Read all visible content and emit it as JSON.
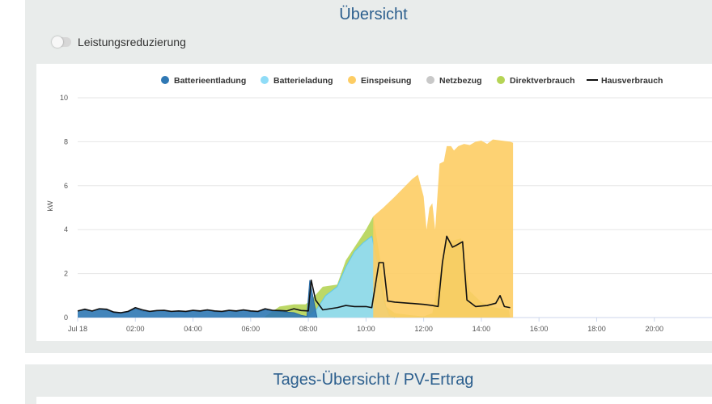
{
  "header": {
    "title": "Übersicht"
  },
  "toggle": {
    "label": "Leistungsreduzierung",
    "state": "off"
  },
  "chart_data": {
    "type": "area",
    "title": "",
    "ylabel": "kW",
    "ylim": [
      0,
      10
    ],
    "yticks": [
      "0",
      "2",
      "4",
      "6",
      "8",
      "10"
    ],
    "xticks": [
      {
        "hour": 0,
        "label": "Jul 18"
      },
      {
        "hour": 2,
        "label": "02:00"
      },
      {
        "hour": 4,
        "label": "04:00"
      },
      {
        "hour": 6,
        "label": "06:00"
      },
      {
        "hour": 8,
        "label": "08:00"
      },
      {
        "hour": 10,
        "label": "10:00"
      },
      {
        "hour": 12,
        "label": "12:00"
      },
      {
        "hour": 14,
        "label": "14:00"
      },
      {
        "hour": 16,
        "label": "16:00"
      },
      {
        "hour": 18,
        "label": "18:00"
      },
      {
        "hour": 20,
        "label": "20:00"
      }
    ],
    "x_range_hours": [
      0,
      22
    ],
    "legend_position": "top",
    "colors": {
      "Batterieentladung": "#2f78b4",
      "Batterieladung": "#8fdcf7",
      "Einspeisung": "#fdcd64",
      "Netzbezug": "#c8c8c8",
      "Direktverbrauch": "#b5d455",
      "Hausverbrauch": "#111111"
    },
    "series": [
      {
        "name": "Batterieentladung",
        "kind": "area",
        "points": [
          [
            0.0,
            0.3
          ],
          [
            0.25,
            0.35
          ],
          [
            0.5,
            0.28
          ],
          [
            0.75,
            0.38
          ],
          [
            1.0,
            0.35
          ],
          [
            1.25,
            0.22
          ],
          [
            1.5,
            0.2
          ],
          [
            1.75,
            0.25
          ],
          [
            2.0,
            0.4
          ],
          [
            2.25,
            0.3
          ],
          [
            2.5,
            0.26
          ],
          [
            2.75,
            0.3
          ],
          [
            3.0,
            0.3
          ],
          [
            3.25,
            0.26
          ],
          [
            3.5,
            0.28
          ],
          [
            3.75,
            0.25
          ],
          [
            4.0,
            0.3
          ],
          [
            4.25,
            0.27
          ],
          [
            4.5,
            0.32
          ],
          [
            4.75,
            0.27
          ],
          [
            5.0,
            0.25
          ],
          [
            5.25,
            0.3
          ],
          [
            5.5,
            0.27
          ],
          [
            5.75,
            0.32
          ],
          [
            6.0,
            0.27
          ],
          [
            6.25,
            0.25
          ],
          [
            6.5,
            0.35
          ],
          [
            6.75,
            0.3
          ],
          [
            7.0,
            0.28
          ],
          [
            7.25,
            0.25
          ],
          [
            7.5,
            0.22
          ],
          [
            7.75,
            0.1
          ],
          [
            7.95,
            0.05
          ],
          [
            8.05,
            1.7
          ],
          [
            8.3,
            0.0
          ]
        ]
      },
      {
        "name": "Direktverbrauch",
        "kind": "area",
        "points": [
          [
            6.5,
            0.05
          ],
          [
            7.0,
            0.5
          ],
          [
            7.5,
            0.6
          ],
          [
            7.9,
            0.6
          ],
          [
            8.1,
            0.8
          ],
          [
            8.5,
            1.4
          ],
          [
            9.0,
            1.5
          ],
          [
            9.3,
            2.6
          ],
          [
            9.6,
            3.2
          ],
          [
            10.0,
            4.0
          ],
          [
            10.25,
            4.6
          ],
          [
            10.5,
            2.6
          ],
          [
            10.7,
            0.5
          ],
          [
            11.0,
            0.2
          ],
          [
            11.6,
            0.1
          ],
          [
            12.0,
            0.05
          ],
          [
            12.3,
            0.2
          ],
          [
            12.5,
            1.6
          ],
          [
            12.8,
            3.6
          ],
          [
            13.0,
            3.5
          ],
          [
            13.3,
            3.6
          ],
          [
            13.6,
            1.2
          ],
          [
            14.0,
            0.7
          ],
          [
            14.3,
            0.5
          ],
          [
            14.7,
            0.4
          ],
          [
            14.95,
            0.35
          ],
          [
            15.0,
            0.0
          ]
        ]
      },
      {
        "name": "Batterieladung",
        "kind": "area",
        "points": [
          [
            8.0,
            0.05
          ],
          [
            8.3,
            0.4
          ],
          [
            8.6,
            1.0
          ],
          [
            9.0,
            1.4
          ],
          [
            9.3,
            2.3
          ],
          [
            9.6,
            3.0
          ],
          [
            9.9,
            3.4
          ],
          [
            10.2,
            3.7
          ],
          [
            10.45,
            2.2
          ],
          [
            10.6,
            0.8
          ],
          [
            10.8,
            0.1
          ],
          [
            11.0,
            0.0
          ]
        ]
      },
      {
        "name": "Einspeisung",
        "kind": "area",
        "points": [
          [
            10.25,
            4.6
          ],
          [
            10.6,
            5.0
          ],
          [
            11.0,
            5.5
          ],
          [
            11.3,
            5.9
          ],
          [
            11.6,
            6.3
          ],
          [
            11.8,
            6.5
          ],
          [
            12.0,
            5.5
          ],
          [
            12.1,
            4.0
          ],
          [
            12.2,
            5.0
          ],
          [
            12.3,
            5.2
          ],
          [
            12.4,
            4.0
          ],
          [
            12.55,
            7.0
          ],
          [
            12.7,
            7.1
          ],
          [
            12.8,
            7.8
          ],
          [
            12.95,
            7.8
          ],
          [
            13.05,
            7.6
          ],
          [
            13.2,
            7.8
          ],
          [
            13.4,
            7.9
          ],
          [
            13.6,
            7.85
          ],
          [
            13.8,
            8.0
          ],
          [
            14.0,
            8.05
          ],
          [
            14.2,
            7.9
          ],
          [
            14.4,
            8.1
          ],
          [
            14.7,
            8.05
          ],
          [
            15.0,
            8.0
          ],
          [
            15.1,
            7.95
          ],
          [
            15.1,
            0.0
          ]
        ]
      },
      {
        "name": "Netzbezug",
        "kind": "area",
        "points": []
      },
      {
        "name": "Hausverbrauch",
        "kind": "line",
        "points": [
          [
            0.0,
            0.3
          ],
          [
            0.25,
            0.38
          ],
          [
            0.5,
            0.3
          ],
          [
            0.75,
            0.4
          ],
          [
            1.0,
            0.38
          ],
          [
            1.25,
            0.25
          ],
          [
            1.5,
            0.22
          ],
          [
            1.75,
            0.28
          ],
          [
            2.0,
            0.45
          ],
          [
            2.25,
            0.35
          ],
          [
            2.5,
            0.28
          ],
          [
            2.75,
            0.32
          ],
          [
            3.0,
            0.33
          ],
          [
            3.25,
            0.28
          ],
          [
            3.5,
            0.3
          ],
          [
            3.75,
            0.28
          ],
          [
            4.0,
            0.33
          ],
          [
            4.25,
            0.3
          ],
          [
            4.5,
            0.35
          ],
          [
            4.75,
            0.3
          ],
          [
            5.0,
            0.28
          ],
          [
            5.25,
            0.33
          ],
          [
            5.5,
            0.3
          ],
          [
            5.75,
            0.35
          ],
          [
            6.0,
            0.3
          ],
          [
            6.25,
            0.28
          ],
          [
            6.5,
            0.4
          ],
          [
            6.75,
            0.33
          ],
          [
            7.0,
            0.32
          ],
          [
            7.25,
            0.3
          ],
          [
            7.5,
            0.4
          ],
          [
            7.75,
            0.32
          ],
          [
            8.0,
            0.3
          ],
          [
            8.1,
            1.7
          ],
          [
            8.25,
            0.8
          ],
          [
            8.5,
            0.35
          ],
          [
            9.0,
            0.45
          ],
          [
            9.3,
            0.55
          ],
          [
            9.6,
            0.5
          ],
          [
            10.0,
            0.5
          ],
          [
            10.2,
            0.45
          ],
          [
            10.45,
            2.5
          ],
          [
            10.6,
            2.5
          ],
          [
            10.75,
            0.75
          ],
          [
            11.0,
            0.7
          ],
          [
            11.5,
            0.65
          ],
          [
            12.0,
            0.6
          ],
          [
            12.3,
            0.55
          ],
          [
            12.5,
            0.5
          ],
          [
            12.65,
            2.5
          ],
          [
            12.8,
            3.7
          ],
          [
            13.0,
            3.2
          ],
          [
            13.15,
            3.3
          ],
          [
            13.35,
            3.45
          ],
          [
            13.5,
            0.8
          ],
          [
            13.8,
            0.5
          ],
          [
            14.2,
            0.55
          ],
          [
            14.5,
            0.65
          ],
          [
            14.65,
            1.0
          ],
          [
            14.8,
            0.5
          ],
          [
            15.0,
            0.45
          ]
        ]
      }
    ]
  },
  "section2": {
    "title": "Tages-Übersicht / PV-Ertrag"
  }
}
